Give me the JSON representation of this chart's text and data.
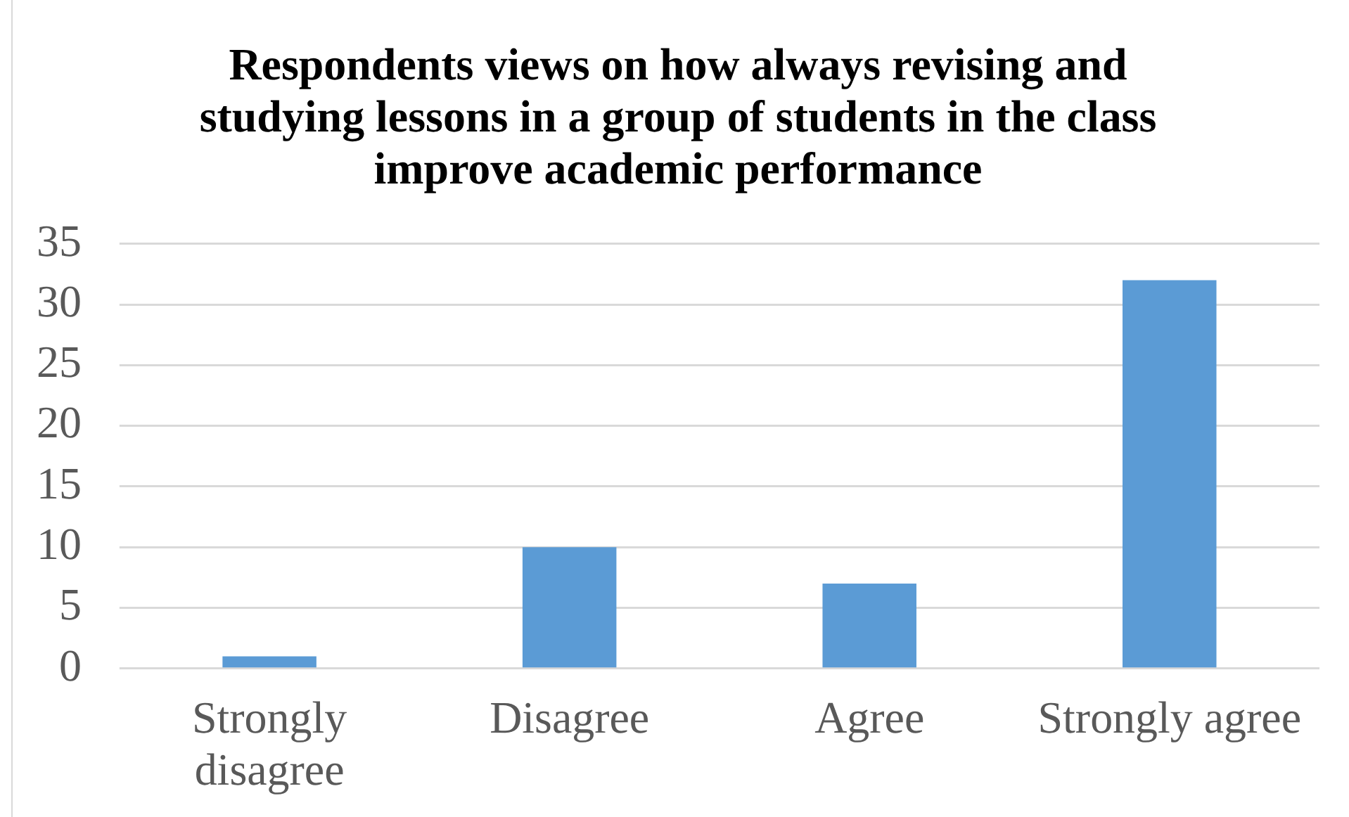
{
  "chart_data": {
    "type": "bar",
    "title": "Respondents views on how always revising and studying lessons in a group of students in the class improve academic performance",
    "categories": [
      "Strongly disagree",
      "Disagree",
      "Agree",
      "Strongly agree"
    ],
    "values": [
      1,
      10,
      7,
      32
    ],
    "color": "#5b9bd5",
    "ylim": [
      0,
      35
    ],
    "yticks": [
      0,
      5,
      10,
      15,
      20,
      25,
      30,
      35
    ],
    "grid": "y"
  }
}
